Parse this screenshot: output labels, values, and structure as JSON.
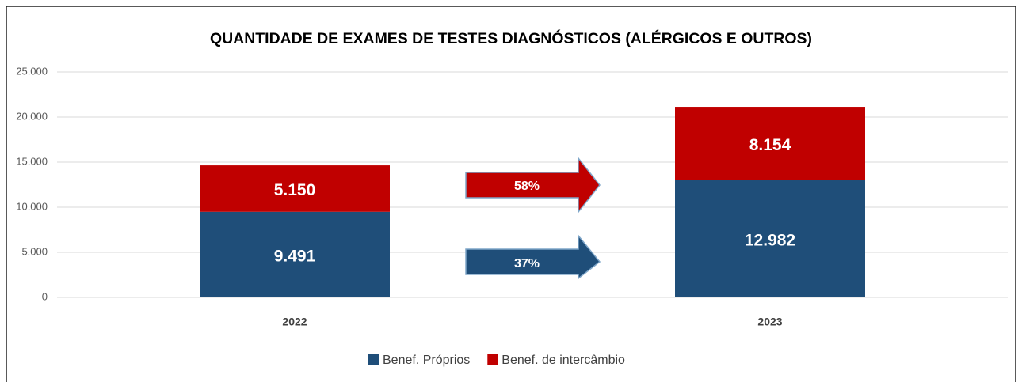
{
  "chart_data": {
    "type": "stacked_bar",
    "title": "QUANTIDADE DE EXAMES DE TESTES DIAGNÓSTICOS (ALÉRGICOS E OUTROS)",
    "categories": [
      "2022",
      "2023"
    ],
    "series": [
      {
        "name": "Benef. Próprios",
        "color": "#1f4e79",
        "values": [
          9491,
          12982
        ],
        "value_labels": [
          "9.491",
          "12.982"
        ]
      },
      {
        "name": "Benef. de intercâmbio",
        "color": "#c00000",
        "values": [
          5150,
          8154
        ],
        "value_labels": [
          "5.150",
          "8.154"
        ]
      }
    ],
    "ylim": [
      0,
      25000
    ],
    "yticks": [
      0,
      {
        "value": 5000,
        "label": "5.000"
      },
      {
        "value": 10000,
        "label": "10.000"
      },
      {
        "value": 15000,
        "label": "15.000"
      },
      {
        "value": 20000,
        "label": "20.000"
      },
      {
        "value": 25000,
        "label": "25.000"
      }
    ],
    "grid": true,
    "legend": "bottom",
    "annotations": [
      "58%",
      "37%"
    ]
  }
}
